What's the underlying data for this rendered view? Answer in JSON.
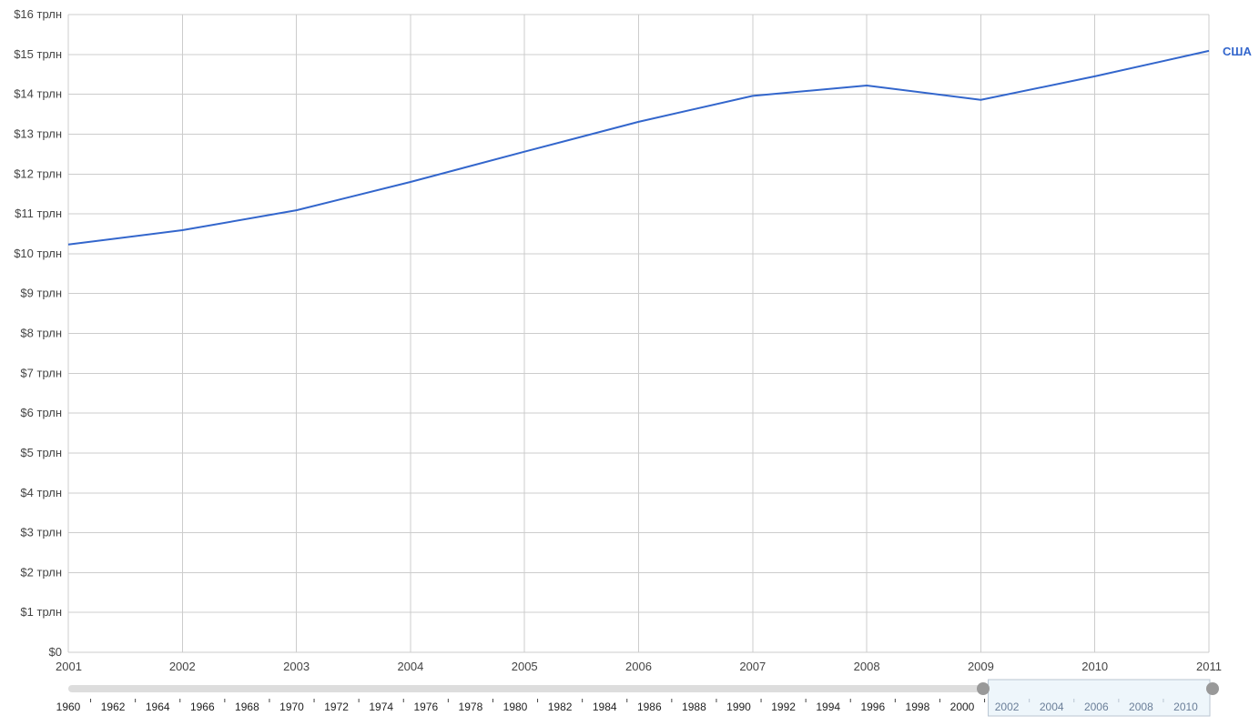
{
  "chart_data": {
    "type": "line",
    "x": [
      "2001",
      "2002",
      "2003",
      "2004",
      "2005",
      "2006",
      "2007",
      "2008",
      "2009",
      "2010",
      "2011"
    ],
    "series": [
      {
        "name": "США",
        "color": "#3366cc",
        "values": [
          10.23,
          10.59,
          11.09,
          11.8,
          12.56,
          13.31,
          13.96,
          14.22,
          13.86,
          14.45,
          15.09
        ]
      }
    ],
    "ylim": [
      0,
      16
    ],
    "y_ticks": [
      "$0",
      "$1 трлн",
      "$2 трлн",
      "$3 трлн",
      "$4 трлн",
      "$5 трлн",
      "$6 трлн",
      "$7 трлн",
      "$8 трлн",
      "$9 трлн",
      "$10 трлн",
      "$11 трлн",
      "$12 трлн",
      "$13 трлн",
      "$14 трлн",
      "$15 трлн",
      "$16 трлн"
    ],
    "grid": true,
    "title": "",
    "xlabel": "",
    "ylabel": ""
  },
  "range_selector": {
    "years": [
      "1960",
      "1962",
      "1964",
      "1966",
      "1968",
      "1970",
      "1972",
      "1974",
      "1976",
      "1978",
      "1980",
      "1982",
      "1984",
      "1986",
      "1988",
      "1990",
      "1992",
      "1994",
      "1996",
      "1998",
      "2000",
      "2002",
      "2004",
      "2006",
      "2008",
      "2010"
    ],
    "selected_from": "2001",
    "selected_to": "2011",
    "track_color": "#dddddd",
    "selection_color": "#eef6fb",
    "handle_color": "#999999"
  }
}
